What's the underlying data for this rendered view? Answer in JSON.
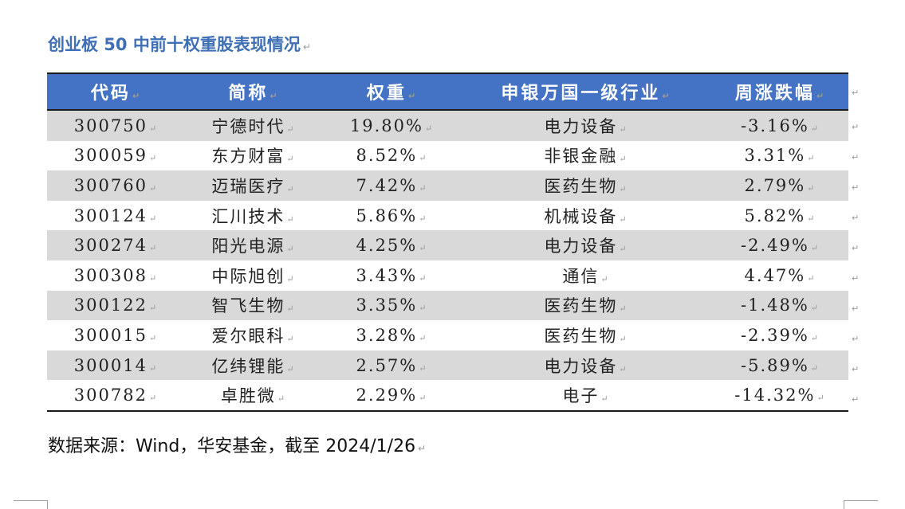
{
  "document": {
    "title": "创业板 50 中前十权重股表现情况",
    "para_mark": "↵",
    "source_note": "数据来源：Wind，华安基金，截至 2024/1/26"
  },
  "table": {
    "headers": [
      "代码",
      "简称",
      "权重",
      "申银万国一级行业",
      "周涨跌幅"
    ],
    "rows": [
      {
        "code": "300750",
        "name": "宁德时代",
        "weight": "19.80%",
        "industry": "电力设备",
        "change": "-3.16%"
      },
      {
        "code": "300059",
        "name": "东方财富",
        "weight": "8.52%",
        "industry": "非银金融",
        "change": "3.31%"
      },
      {
        "code": "300760",
        "name": "迈瑞医疗",
        "weight": "7.42%",
        "industry": "医药生物",
        "change": "2.79%"
      },
      {
        "code": "300124",
        "name": "汇川技术",
        "weight": "5.86%",
        "industry": "机械设备",
        "change": "5.82%"
      },
      {
        "code": "300274",
        "name": "阳光电源",
        "weight": "4.25%",
        "industry": "电力设备",
        "change": "-2.49%"
      },
      {
        "code": "300308",
        "name": "中际旭创",
        "weight": "3.43%",
        "industry": "通信",
        "change": "4.47%"
      },
      {
        "code": "300122",
        "name": "智飞生物",
        "weight": "3.35%",
        "industry": "医药生物",
        "change": "-1.48%"
      },
      {
        "code": "300015",
        "name": "爱尔眼科",
        "weight": "3.28%",
        "industry": "医药生物",
        "change": "-2.39%"
      },
      {
        "code": "300014",
        "name": "亿纬锂能",
        "weight": "2.57%",
        "industry": "电力设备",
        "change": "-5.89%"
      },
      {
        "code": "300782",
        "name": "卓胜微",
        "weight": "2.29%",
        "industry": "电子",
        "change": "-14.32%"
      }
    ]
  },
  "colors": {
    "title": "#3f6fb4",
    "header_fill": "#4472c4",
    "shaded_row": "#d9d9d9"
  }
}
